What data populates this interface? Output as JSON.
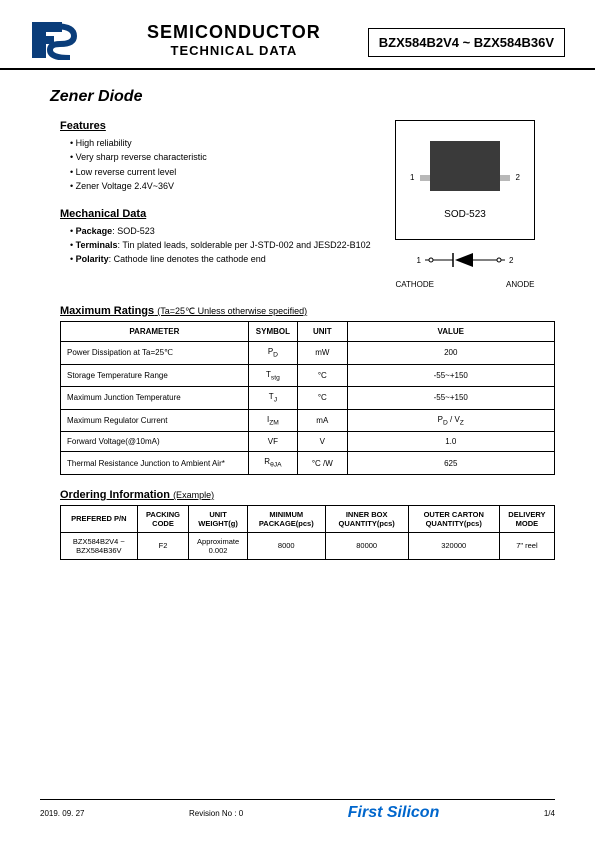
{
  "header": {
    "title1": "SEMICONDUCTOR",
    "title2": "TECHNICAL DATA",
    "partnum": "BZX584B2V4 ~ BZX584B36V",
    "logo_colors": {
      "primary": "#0a3d7a",
      "accent": "#0a3d7a"
    }
  },
  "product_title": "Zener Diode",
  "features": {
    "heading": "Features",
    "items": [
      "High reliability",
      "Very sharp reverse characteristic",
      "Low reverse current level",
      "Zener Voltage 2.4V~36V"
    ]
  },
  "mechanical": {
    "heading": "Mechanical Data",
    "items": [
      {
        "label": "Package",
        "value": "SOD-523"
      },
      {
        "label": "Terminals",
        "value": "Tin plated leads, solderable  per J-STD-002 and JESD22-B102"
      },
      {
        "label": "Polarity",
        "value": "Cathode line denotes the cathode end"
      }
    ]
  },
  "package_drawing": {
    "name": "SOD-523",
    "pin1": "1",
    "pin2": "2",
    "cathode_label": "CATHODE",
    "anode_label": "ANODE",
    "sym_pin1": "1",
    "sym_pin2": "2",
    "chip_color": "#3a3a3a",
    "lead_color": "#b8b8b8"
  },
  "max_ratings": {
    "heading": "Maximum Ratings",
    "condition": "(Ta=25℃ Unless otherwise specified)",
    "columns": [
      "PARAMETER",
      "SYMBOL",
      "UNIT",
      "VALUE"
    ],
    "col_widths": [
      "38%",
      "10%",
      "10%",
      "42%"
    ],
    "rows": [
      [
        "Power Dissipation at Ta=25℃",
        "P<sub>D</sub>",
        "mW",
        "200"
      ],
      [
        "Storage Temperature Range",
        "T<sub>stg</sub>",
        "°C",
        "-55~+150"
      ],
      [
        "Maximum Junction Temperature",
        "T<sub>J</sub>",
        "°C",
        "-55~+150"
      ],
      [
        "Maximum Regulator Current",
        "I<sub>ZM</sub>",
        "mA",
        "P<sub>D</sub> / V<sub>Z</sub>"
      ],
      [
        "Forward Voltage(@10mA)",
        "VF",
        "V",
        "1.0"
      ],
      [
        "Thermal Resistance Junction to Ambient Air*",
        "R<sub>θJA</sub>",
        "°C /W",
        "625"
      ]
    ]
  },
  "ordering": {
    "heading": "Ordering Information",
    "note": "(Example)",
    "columns": [
      "PREFERED P/N",
      "PACKING CODE",
      "UNIT WEIGHT(g)",
      "MINIMUM PACKAGE(pcs)",
      "INNER BOX QUANTITY(pcs)",
      "OUTER CARTON QUANTITY(pcs)",
      "DELIVERY MODE"
    ],
    "row": [
      "BZX584B2V4 ~ BZX584B36V",
      "F2",
      "Approximate 0.002",
      "8000",
      "80000",
      "320000",
      "7\" reel"
    ]
  },
  "footer": {
    "date": "2019. 09. 27",
    "revision": "Revision No : 0",
    "company": "First Silicon",
    "page": "1/4",
    "company_color": "#0066cc"
  }
}
